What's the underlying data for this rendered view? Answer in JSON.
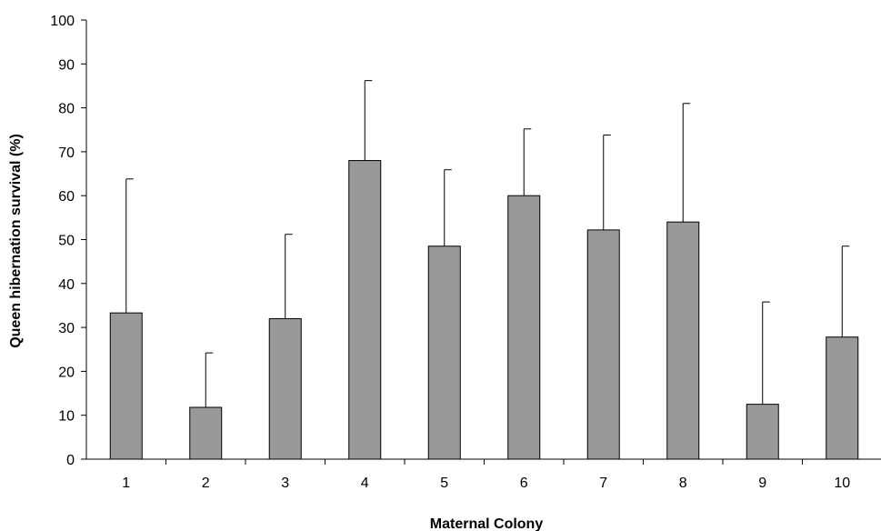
{
  "chart_data": {
    "type": "bar",
    "categories": [
      "1",
      "2",
      "3",
      "4",
      "5",
      "6",
      "7",
      "8",
      "9",
      "10"
    ],
    "values": [
      33.3,
      11.8,
      32.0,
      68.0,
      48.5,
      60.0,
      52.2,
      54.0,
      12.5,
      27.8
    ],
    "error_upper": [
      63.8,
      24.2,
      51.2,
      86.2,
      65.9,
      75.2,
      73.8,
      81.0,
      35.8,
      48.5
    ],
    "xlabel": "Maternal Colony",
    "ylabel": "Queen hibernation survival (%)",
    "ylim": [
      0,
      100
    ],
    "yticks": [
      0,
      10,
      20,
      30,
      40,
      50,
      60,
      70,
      80,
      90,
      100
    ],
    "grid": false,
    "legend": "none",
    "colors": {
      "bar": "#999999",
      "outline": "#000000"
    }
  }
}
